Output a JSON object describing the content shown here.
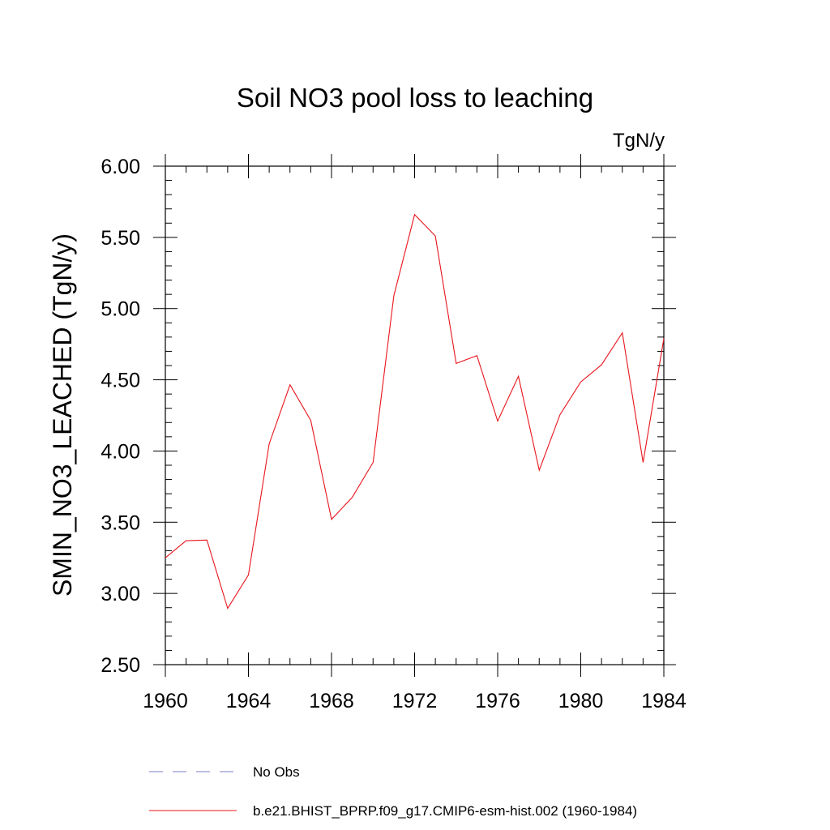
{
  "chart_data": {
    "type": "line",
    "title": "Soil NO3 pool loss to leaching",
    "units_label": "TgN/y",
    "ylabel": "SMIN_NO3_LEACHED  (TgN/y)",
    "xlabel": "",
    "xlim": [
      1960,
      1984
    ],
    "ylim": [
      2.5,
      6.0
    ],
    "x_ticks": [
      1960,
      1964,
      1968,
      1972,
      1976,
      1980,
      1984
    ],
    "y_ticks": [
      2.5,
      3.0,
      3.5,
      4.0,
      4.5,
      5.0,
      5.5,
      6.0
    ],
    "y_tick_labels": [
      "2.50",
      "3.00",
      "3.50",
      "4.00",
      "4.50",
      "5.00",
      "5.50",
      "6.00"
    ],
    "grid": false,
    "legend_position": "bottom",
    "series": [
      {
        "name": "b.e21.BHIST_BPRP.f09_g17.CMIP6-esm-hist.002 (1960-1984)",
        "color": "#e8141c",
        "style": "solid",
        "x": [
          1960,
          1961,
          1962,
          1963,
          1964,
          1965,
          1966,
          1967,
          1968,
          1969,
          1970,
          1971,
          1972,
          1973,
          1974,
          1975,
          1976,
          1977,
          1978,
          1979,
          1980,
          1981,
          1982,
          1983,
          1984
        ],
        "y": [
          3.25,
          3.37,
          3.375,
          2.895,
          3.13,
          4.05,
          4.465,
          4.215,
          3.52,
          3.675,
          3.92,
          5.09,
          5.66,
          5.51,
          4.615,
          4.67,
          4.21,
          4.525,
          3.865,
          4.255,
          4.485,
          4.605,
          4.83,
          3.92,
          4.79
        ]
      }
    ],
    "legend": [
      {
        "label": "No Obs",
        "color": "#7b7bc8",
        "style": "dashed"
      },
      {
        "label": "b.e21.BHIST_BPRP.f09_g17.CMIP6-esm-hist.002 (1960-1984)",
        "color": "#e8141c",
        "style": "solid"
      }
    ]
  }
}
